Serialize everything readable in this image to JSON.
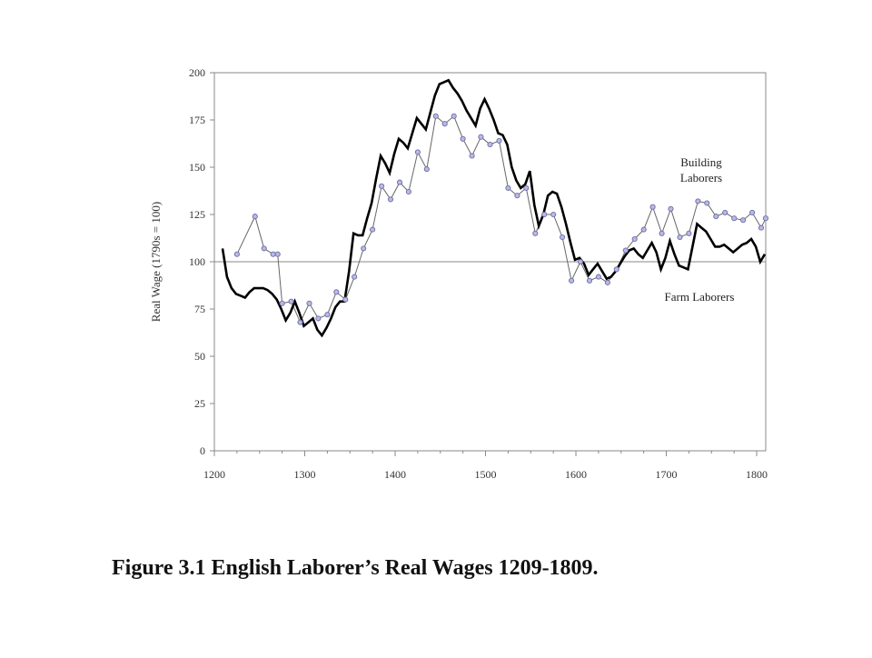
{
  "caption": "Figure 3.1  English Laborer’s Real Wages 1209-1809.",
  "chart_data": {
    "type": "line",
    "title": "",
    "xlabel": "",
    "ylabel": "Real Wage (1790s = 100)",
    "xlim": [
      1200,
      1810
    ],
    "ylim": [
      0,
      200
    ],
    "xticks": [
      1200,
      1300,
      1400,
      1500,
      1600,
      1700,
      1800
    ],
    "yticks": [
      0,
      25,
      50,
      75,
      100,
      125,
      150,
      175,
      200
    ],
    "reference_line": 100,
    "grid": false,
    "colors": {
      "farm": "#000000",
      "building_line": "#666666",
      "building_marker_fill": "#b9b9e6",
      "building_marker_stroke": "#6c6ca4",
      "axis": "#888888"
    },
    "series": [
      {
        "name": "Farm Laborers",
        "label_lines": [
          "Farm Laborers"
        ],
        "style": "thick-line",
        "points": [
          [
            1209,
            107
          ],
          [
            1214,
            92
          ],
          [
            1219,
            86
          ],
          [
            1224,
            83
          ],
          [
            1229,
            82
          ],
          [
            1234,
            81
          ],
          [
            1239,
            84
          ],
          [
            1244,
            86
          ],
          [
            1249,
            86
          ],
          [
            1254,
            86
          ],
          [
            1259,
            85
          ],
          [
            1264,
            83
          ],
          [
            1269,
            80
          ],
          [
            1274,
            75
          ],
          [
            1279,
            69
          ],
          [
            1284,
            73
          ],
          [
            1289,
            79
          ],
          [
            1294,
            73
          ],
          [
            1299,
            66
          ],
          [
            1304,
            68
          ],
          [
            1309,
            70
          ],
          [
            1314,
            64
          ],
          [
            1319,
            61
          ],
          [
            1324,
            65
          ],
          [
            1329,
            70
          ],
          [
            1334,
            76
          ],
          [
            1339,
            79
          ],
          [
            1344,
            79
          ],
          [
            1349,
            95
          ],
          [
            1354,
            115
          ],
          [
            1359,
            114
          ],
          [
            1364,
            114
          ],
          [
            1369,
            123
          ],
          [
            1374,
            131
          ],
          [
            1379,
            144
          ],
          [
            1384,
            156
          ],
          [
            1389,
            152
          ],
          [
            1394,
            147
          ],
          [
            1399,
            157
          ],
          [
            1404,
            165
          ],
          [
            1409,
            163
          ],
          [
            1414,
            160
          ],
          [
            1419,
            168
          ],
          [
            1424,
            176
          ],
          [
            1429,
            173
          ],
          [
            1434,
            170
          ],
          [
            1439,
            179
          ],
          [
            1444,
            188
          ],
          [
            1449,
            194
          ],
          [
            1454,
            195
          ],
          [
            1459,
            196
          ],
          [
            1464,
            192
          ],
          [
            1469,
            189
          ],
          [
            1474,
            185
          ],
          [
            1479,
            180
          ],
          [
            1484,
            176
          ],
          [
            1489,
            172
          ],
          [
            1494,
            181
          ],
          [
            1499,
            186
          ],
          [
            1504,
            181
          ],
          [
            1509,
            175
          ],
          [
            1514,
            168
          ],
          [
            1519,
            167
          ],
          [
            1524,
            162
          ],
          [
            1529,
            150
          ],
          [
            1534,
            143
          ],
          [
            1539,
            139
          ],
          [
            1544,
            141
          ],
          [
            1549,
            148
          ],
          [
            1554,
            130
          ],
          [
            1559,
            119
          ],
          [
            1564,
            125
          ],
          [
            1569,
            135
          ],
          [
            1574,
            137
          ],
          [
            1579,
            136
          ],
          [
            1584,
            129
          ],
          [
            1589,
            120
          ],
          [
            1594,
            110
          ],
          [
            1599,
            101
          ],
          [
            1604,
            102
          ],
          [
            1609,
            99
          ],
          [
            1614,
            93
          ],
          [
            1619,
            96
          ],
          [
            1624,
            99
          ],
          [
            1629,
            95
          ],
          [
            1634,
            91
          ],
          [
            1639,
            92
          ],
          [
            1644,
            95
          ],
          [
            1649,
            99
          ],
          [
            1654,
            103
          ],
          [
            1659,
            106
          ],
          [
            1664,
            107
          ],
          [
            1669,
            104
          ],
          [
            1674,
            102
          ],
          [
            1679,
            106
          ],
          [
            1684,
            110
          ],
          [
            1689,
            105
          ],
          [
            1694,
            96
          ],
          [
            1699,
            102
          ],
          [
            1704,
            111
          ],
          [
            1709,
            104
          ],
          [
            1714,
            98
          ],
          [
            1719,
            97
          ],
          [
            1724,
            96
          ],
          [
            1729,
            108
          ],
          [
            1734,
            120
          ],
          [
            1739,
            118
          ],
          [
            1744,
            116
          ],
          [
            1749,
            112
          ],
          [
            1754,
            108
          ],
          [
            1759,
            108
          ],
          [
            1764,
            109
          ],
          [
            1769,
            107
          ],
          [
            1774,
            105
          ],
          [
            1779,
            107
          ],
          [
            1784,
            109
          ],
          [
            1789,
            110
          ],
          [
            1794,
            112
          ],
          [
            1799,
            108
          ],
          [
            1804,
            100
          ],
          [
            1809,
            104
          ]
        ]
      },
      {
        "name": "Building Laborers",
        "label_lines": [
          "Building",
          "Laborers"
        ],
        "style": "thin-line-markers",
        "points": [
          [
            1225,
            104
          ],
          [
            1245,
            124
          ],
          [
            1255,
            107
          ],
          [
            1265,
            104
          ],
          [
            1270,
            104
          ],
          [
            1275,
            78
          ],
          [
            1285,
            79
          ],
          [
            1295,
            68
          ],
          [
            1305,
            78
          ],
          [
            1315,
            70
          ],
          [
            1325,
            72
          ],
          [
            1335,
            84
          ],
          [
            1345,
            80
          ],
          [
            1355,
            92
          ],
          [
            1365,
            107
          ],
          [
            1375,
            117
          ],
          [
            1385,
            140
          ],
          [
            1395,
            133
          ],
          [
            1405,
            142
          ],
          [
            1415,
            137
          ],
          [
            1425,
            158
          ],
          [
            1435,
            149
          ],
          [
            1445,
            177
          ],
          [
            1455,
            173
          ],
          [
            1465,
            177
          ],
          [
            1475,
            165
          ],
          [
            1485,
            156
          ],
          [
            1495,
            166
          ],
          [
            1505,
            162
          ],
          [
            1515,
            164
          ],
          [
            1525,
            139
          ],
          [
            1535,
            135
          ],
          [
            1545,
            139
          ],
          [
            1555,
            115
          ],
          [
            1565,
            125
          ],
          [
            1575,
            125
          ],
          [
            1585,
            113
          ],
          [
            1595,
            90
          ],
          [
            1605,
            100
          ],
          [
            1615,
            90
          ],
          [
            1625,
            92
          ],
          [
            1635,
            89
          ],
          [
            1645,
            96
          ],
          [
            1655,
            106
          ],
          [
            1665,
            112
          ],
          [
            1675,
            117
          ],
          [
            1685,
            129
          ],
          [
            1695,
            115
          ],
          [
            1705,
            128
          ],
          [
            1715,
            113
          ],
          [
            1725,
            115
          ],
          [
            1735,
            132
          ],
          [
            1745,
            131
          ],
          [
            1755,
            124
          ],
          [
            1765,
            126
          ],
          [
            1775,
            123
          ],
          [
            1785,
            122
          ],
          [
            1795,
            126
          ],
          [
            1805,
            118
          ],
          [
            1810,
            123
          ]
        ]
      }
    ]
  }
}
